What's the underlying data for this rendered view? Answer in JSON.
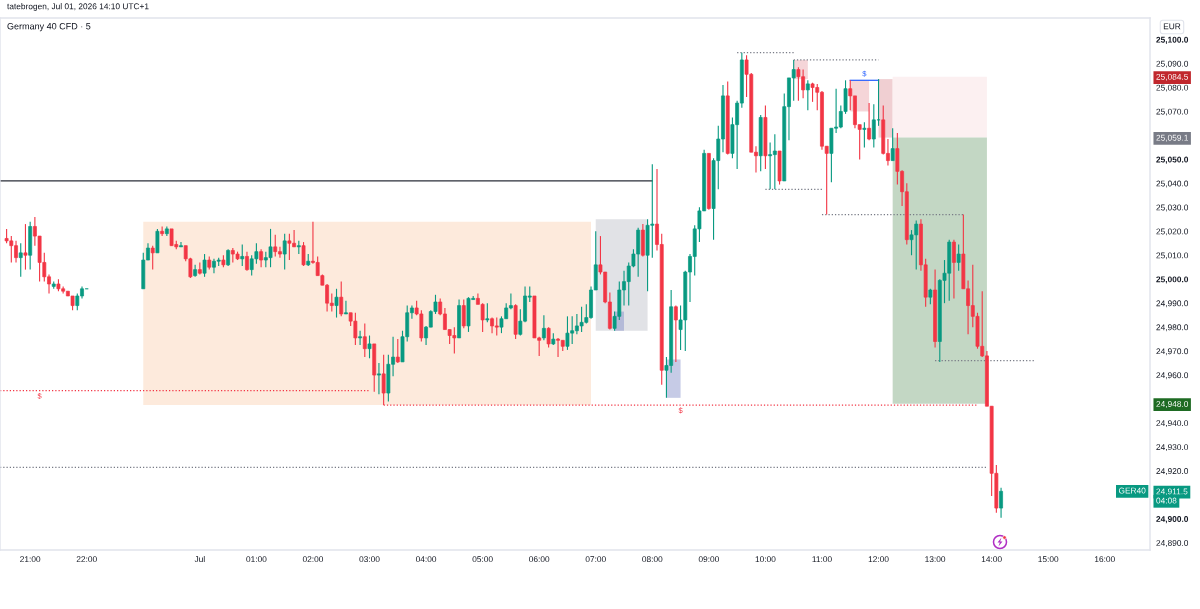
{
  "chart_data": {
    "type": "candlestick",
    "title": "Germany 40 CFD · 5",
    "ylabel": "EUR",
    "x": [
      "2026-06-30T20:35",
      "2026-06-30T20:40",
      "2026-06-30T20:45",
      "2026-06-30T20:50",
      "2026-06-30T20:55",
      "2026-06-30T21:00",
      "2026-06-30T21:05",
      "2026-06-30T21:10",
      "2026-06-30T21:15",
      "2026-06-30T21:20",
      "2026-06-30T21:25",
      "2026-06-30T21:30",
      "2026-06-30T21:35",
      "2026-06-30T21:40",
      "2026-06-30T21:45",
      "2026-06-30T21:50",
      "2026-06-30T21:55",
      "2026-06-30T22:00",
      "2026-06-30T23:00",
      "2026-06-30T23:05",
      "2026-06-30T23:10",
      "2026-06-30T23:15",
      "2026-06-30T23:20",
      "2026-06-30T23:25",
      "2026-06-30T23:30",
      "2026-06-30T23:35",
      "2026-06-30T23:40",
      "2026-06-30T23:45",
      "2026-06-30T23:50",
      "2026-06-30T23:55",
      "2026-07-01T00:00",
      "2026-07-01T00:05",
      "2026-07-01T00:10",
      "2026-07-01T00:15",
      "2026-07-01T00:20",
      "2026-07-01T00:25",
      "2026-07-01T00:30",
      "2026-07-01T00:35",
      "2026-07-01T00:40",
      "2026-07-01T00:45",
      "2026-07-01T00:50",
      "2026-07-01T00:55",
      "2026-07-01T01:00",
      "2026-07-01T01:05",
      "2026-07-01T01:10",
      "2026-07-01T01:15",
      "2026-07-01T01:20",
      "2026-07-01T01:25",
      "2026-07-01T01:30",
      "2026-07-01T01:35",
      "2026-07-01T01:40",
      "2026-07-01T01:45",
      "2026-07-01T01:50",
      "2026-07-01T01:55",
      "2026-07-01T02:00",
      "2026-07-01T02:05",
      "2026-07-01T02:10",
      "2026-07-01T02:15",
      "2026-07-01T02:20",
      "2026-07-01T02:25",
      "2026-07-01T02:30",
      "2026-07-01T02:35",
      "2026-07-01T02:40",
      "2026-07-01T02:45",
      "2026-07-01T02:50",
      "2026-07-01T02:55",
      "2026-07-01T03:00",
      "2026-07-01T03:05",
      "2026-07-01T03:10",
      "2026-07-01T03:15",
      "2026-07-01T03:20",
      "2026-07-01T03:25",
      "2026-07-01T03:30",
      "2026-07-01T03:35",
      "2026-07-01T03:40",
      "2026-07-01T03:45",
      "2026-07-01T03:50",
      "2026-07-01T03:55",
      "2026-07-01T04:00",
      "2026-07-01T04:05",
      "2026-07-01T04:10",
      "2026-07-01T04:15",
      "2026-07-01T04:20",
      "2026-07-01T04:25",
      "2026-07-01T04:30",
      "2026-07-01T04:35",
      "2026-07-01T04:40",
      "2026-07-01T04:45",
      "2026-07-01T04:50",
      "2026-07-01T04:55",
      "2026-07-01T05:00",
      "2026-07-01T05:05",
      "2026-07-01T05:10",
      "2026-07-01T05:15",
      "2026-07-01T05:20",
      "2026-07-01T05:25",
      "2026-07-01T05:30",
      "2026-07-01T05:35",
      "2026-07-01T05:40",
      "2026-07-01T05:45",
      "2026-07-01T05:50",
      "2026-07-01T05:55",
      "2026-07-01T06:00",
      "2026-07-01T06:05",
      "2026-07-01T06:10",
      "2026-07-01T06:15",
      "2026-07-01T06:20",
      "2026-07-01T06:25",
      "2026-07-01T06:30",
      "2026-07-01T06:35",
      "2026-07-01T06:40",
      "2026-07-01T06:45",
      "2026-07-01T06:50",
      "2026-07-01T06:55",
      "2026-07-01T07:00",
      "2026-07-01T07:05",
      "2026-07-01T07:10",
      "2026-07-01T07:15",
      "2026-07-01T07:20",
      "2026-07-01T07:25",
      "2026-07-01T07:30",
      "2026-07-01T07:35",
      "2026-07-01T07:40",
      "2026-07-01T07:45",
      "2026-07-01T07:50",
      "2026-07-01T07:55",
      "2026-07-01T08:00",
      "2026-07-01T08:05",
      "2026-07-01T08:10",
      "2026-07-01T08:15",
      "2026-07-01T08:20",
      "2026-07-01T08:25",
      "2026-07-01T08:30",
      "2026-07-01T08:35",
      "2026-07-01T08:40",
      "2026-07-01T08:45",
      "2026-07-01T08:50",
      "2026-07-01T08:55",
      "2026-07-01T09:00",
      "2026-07-01T09:05",
      "2026-07-01T09:10",
      "2026-07-01T09:15",
      "2026-07-01T09:20",
      "2026-07-01T09:25",
      "2026-07-01T09:30",
      "2026-07-01T09:35",
      "2026-07-01T09:40",
      "2026-07-01T09:45",
      "2026-07-01T09:50",
      "2026-07-01T09:55",
      "2026-07-01T10:00",
      "2026-07-01T10:05",
      "2026-07-01T10:10",
      "2026-07-01T10:15",
      "2026-07-01T10:20",
      "2026-07-01T10:25",
      "2026-07-01T10:30",
      "2026-07-01T10:35",
      "2026-07-01T10:40",
      "2026-07-01T10:45",
      "2026-07-01T10:50",
      "2026-07-01T10:55",
      "2026-07-01T11:00",
      "2026-07-01T11:05",
      "2026-07-01T11:10",
      "2026-07-01T11:15",
      "2026-07-01T11:20",
      "2026-07-01T11:25",
      "2026-07-01T11:30",
      "2026-07-01T11:35",
      "2026-07-01T11:40",
      "2026-07-01T11:45",
      "2026-07-01T11:50",
      "2026-07-01T11:55",
      "2026-07-01T12:00",
      "2026-07-01T12:05",
      "2026-07-01T12:10",
      "2026-07-01T12:15",
      "2026-07-01T12:20",
      "2026-07-01T12:25",
      "2026-07-01T12:30",
      "2026-07-01T12:35",
      "2026-07-01T12:40",
      "2026-07-01T12:45",
      "2026-07-01T12:50",
      "2026-07-01T12:55",
      "2026-07-01T13:00",
      "2026-07-01T13:05",
      "2026-07-01T13:10",
      "2026-07-01T13:15",
      "2026-07-01T13:20",
      "2026-07-01T13:25",
      "2026-07-01T13:30",
      "2026-07-01T13:35",
      "2026-07-01T13:40",
      "2026-07-01T13:45",
      "2026-07-01T13:50",
      "2026-07-01T13:55",
      "2026-07-01T14:00",
      "2026-07-01T14:05",
      "2026-07-01T14:10"
    ],
    "ohlc": [
      [
        25017,
        25021,
        25015,
        25016
      ],
      [
        25016,
        25018,
        25007,
        25014
      ],
      [
        25014,
        25016,
        25007,
        25009
      ],
      [
        25009,
        25015,
        25001,
        25011
      ],
      [
        25011,
        25023,
        25004,
        25010
      ],
      [
        25010,
        25024,
        25004,
        25022
      ],
      [
        25022,
        25026,
        25014,
        25018
      ],
      [
        25018,
        25018,
        24999,
        25007
      ],
      [
        25007,
        25011,
        24999,
        25001
      ],
      [
        25001,
        25002,
        24994,
        24998
      ],
      [
        24997,
        24999,
        24996,
        24998
      ],
      [
        24998,
        25000,
        24995,
        24996
      ],
      [
        24996,
        24997,
        24994,
        24995
      ],
      [
        24995,
        24995,
        24993,
        24993
      ],
      [
        24993,
        24993,
        24987,
        24989
      ],
      [
        24989,
        24994,
        24987,
        24993
      ],
      [
        24993,
        24997,
        24992,
        24996
      ],
      [
        24996,
        24996,
        24996,
        24996
      ],
      [
        24996,
        25011,
        24996,
        25008
      ],
      [
        25008,
        25015,
        25008,
        25013
      ],
      [
        25013,
        25014,
        25004,
        25011
      ],
      [
        25011,
        25021,
        25011,
        25020
      ],
      [
        25020,
        25022,
        25018,
        25019
      ],
      [
        25019,
        25022,
        25018,
        25021
      ],
      [
        25021,
        25021,
        25014,
        25014
      ],
      [
        25014.5,
        25016,
        25012.5,
        25013.5
      ],
      [
        25013.5,
        25015.5,
        25013.5,
        25014
      ],
      [
        25014,
        25014,
        25007.5,
        25008.5
      ],
      [
        25008.5,
        25009,
        25000.5,
        25001
      ],
      [
        25001.5,
        25006,
        25001,
        25004
      ],
      [
        25004,
        25007,
        25002,
        25002.5
      ],
      [
        25002.5,
        25010.5,
        25001,
        25008
      ],
      [
        25008,
        25009.5,
        25004,
        25005
      ],
      [
        25005,
        25008.5,
        25002.5,
        25007.5
      ],
      [
        25007.5,
        25009,
        25005.5,
        25008
      ],
      [
        25008,
        25010,
        25005,
        25006
      ],
      [
        25006,
        25012.5,
        25005.5,
        25012
      ],
      [
        25012,
        25013,
        25007,
        25010.5
      ],
      [
        25010.5,
        25011.5,
        25008,
        25008.5
      ],
      [
        25008.5,
        25014.5,
        25005.5,
        25009.5
      ],
      [
        25009.5,
        25011.5,
        25003.5,
        25004
      ],
      [
        25004,
        25010,
        25001.5,
        25008.5
      ],
      [
        25008.5,
        25015,
        25006.5,
        25011.5
      ],
      [
        25011.5,
        25012.5,
        25005,
        25008
      ],
      [
        25008,
        25011.5,
        25005,
        25009
      ],
      [
        25009,
        25021,
        25005,
        25013.5
      ],
      [
        25013.5,
        25018.5,
        25009.5,
        25011.5
      ],
      [
        25011.5,
        25013.5,
        25009,
        25010.5
      ],
      [
        25010.5,
        25019,
        25004,
        25016
      ],
      [
        25016,
        25019,
        25008,
        25015
      ],
      [
        25015,
        25020.5,
        25013.5,
        25013.5
      ],
      [
        25013.5,
        25016,
        25010.5,
        25014
      ],
      [
        25014,
        25015.5,
        25005.5,
        25006
      ],
      [
        25006,
        25010.5,
        25005.5,
        25007.5
      ],
      [
        25007.5,
        25024,
        25006.5,
        25007
      ],
      [
        25007,
        25009.5,
        25001.5,
        25001.5
      ],
      [
        25001.5,
        25002,
        24997.5,
        24997.5
      ],
      [
        24997.5,
        24998,
        24986.5,
        24990
      ],
      [
        24990,
        24994,
        24986.5,
        24989
      ],
      [
        24989,
        24996,
        24984,
        24992.5
      ],
      [
        24992.5,
        24999,
        24984.5,
        24985.5
      ],
      [
        24985.5,
        24991,
        24985.5,
        24986
      ],
      [
        24986,
        24986,
        24980.5,
        24982.5
      ],
      [
        24982.5,
        24986,
        24972.5,
        24975.5
      ],
      [
        24975.5,
        24978.5,
        24972.5,
        24976
      ],
      [
        24976,
        24981.5,
        24967.5,
        24971
      ],
      [
        24971,
        24976.5,
        24967,
        24973
      ],
      [
        24973,
        24973,
        24953,
        24960
      ],
      [
        24960,
        24965,
        24952,
        24960.5
      ],
      [
        24960.5,
        24968.5,
        24947.5,
        24952.5
      ],
      [
        24952.5,
        24968.5,
        24949,
        24964.5
      ],
      [
        24964.5,
        24976,
        24959.5,
        24967.5
      ],
      [
        24967.5,
        24975,
        24965,
        24965.5
      ],
      [
        24965.5,
        24978.5,
        24965.5,
        24976
      ],
      [
        24976,
        24989,
        24974,
        24986
      ],
      [
        24986,
        24989,
        24983.5,
        24988
      ],
      [
        24988,
        24991,
        24985,
        24985.5
      ],
      [
        24985.5,
        24987,
        24974,
        24975.5
      ],
      [
        24975.5,
        24980.5,
        24972.5,
        24980
      ],
      [
        24980,
        24987,
        24980,
        24986.5
      ],
      [
        24986.5,
        24993.5,
        24985.5,
        24990.5
      ],
      [
        24990.5,
        24992,
        24985,
        24985.5
      ],
      [
        24985.5,
        24988,
        24979,
        24979
      ],
      [
        24979,
        24979,
        24973,
        24976.5
      ],
      [
        24976.5,
        24980,
        24969,
        24975.5
      ],
      [
        24975.5,
        24991.5,
        24975.5,
        24989
      ],
      [
        24989,
        24991.5,
        24979.5,
        24980.5
      ],
      [
        24980.5,
        24992.5,
        24978,
        24992
      ],
      [
        24991.5,
        24993,
        24991.5,
        24992
      ],
      [
        24992,
        24994,
        24989.5,
        24989.5
      ],
      [
        24989.5,
        24990,
        24978,
        24983
      ],
      [
        24983,
        24990,
        24982,
        24983.5
      ],
      [
        24983.5,
        24984,
        24977.5,
        24980.5
      ],
      [
        24980.5,
        24984,
        24976.5,
        24980
      ],
      [
        24980,
        24984.5,
        24977.5,
        24983.5
      ],
      [
        24983.5,
        24990,
        24983.5,
        24988
      ],
      [
        24988,
        24994,
        24987.5,
        24989
      ],
      [
        24989,
        24989.5,
        24975,
        24977
      ],
      [
        24977,
        24987.5,
        24976.5,
        24982.5
      ],
      [
        24982.5,
        24997,
        24982,
        24993
      ],
      [
        24992.5,
        24997,
        24990.5,
        24993
      ],
      [
        24993,
        24993,
        24975.5,
        24975.5
      ],
      [
        24975.5,
        24976,
        24968,
        24974.5
      ],
      [
        24975.5,
        24985,
        24974.5,
        24979.5
      ],
      [
        24979.5,
        24980,
        24971.5,
        24973
      ],
      [
        24973,
        24977.5,
        24972.5,
        24975
      ],
      [
        24975,
        24975.5,
        24967.5,
        24974.5
      ],
      [
        24974.5,
        24974.5,
        24970,
        24972
      ],
      [
        24972,
        24984.5,
        24970.5,
        24977.5
      ],
      [
        24977.5,
        24984.5,
        24973,
        24978.5
      ],
      [
        24978.5,
        24985.5,
        24977,
        24980.5
      ],
      [
        24980.5,
        24988.5,
        24978,
        24982
      ],
      [
        24982,
        24989.5,
        24981.5,
        24984
      ],
      [
        24984,
        24997,
        24983.5,
        24995.5
      ],
      [
        24995.5,
        25020,
        24995.5,
        25006
      ],
      [
        25006,
        25018,
        25002,
        25003
      ],
      [
        25003,
        25003,
        24990,
        24990.5
      ],
      [
        24990.5,
        24994.5,
        24979,
        24979.5
      ],
      [
        24979.5,
        24986.5,
        24978.5,
        24984.5
      ],
      [
        24984.5,
        24999,
        24983,
        24995.5
      ],
      [
        24995.5,
        25003.5,
        24989,
        24999
      ],
      [
        24999,
        25007,
        24989,
        25005.5
      ],
      [
        25005.5,
        25012.5,
        25005,
        25010.5
      ],
      [
        25010.5,
        25021.5,
        25001,
        25020.5
      ],
      [
        25020.5,
        25023,
        25009.5,
        25010
      ],
      [
        25010,
        25025,
        24995,
        25022.5
      ],
      [
        25022.5,
        25048,
        25009,
        25023
      ],
      [
        25023,
        25046,
        25012,
        25014.5
      ],
      [
        25014.5,
        25019,
        24956,
        24962
      ],
      [
        24962,
        24967.5,
        24950.5,
        24964
      ],
      [
        24964,
        24995.5,
        24961,
        24988.5
      ],
      [
        24988.5,
        24989,
        24965.5,
        24983
      ],
      [
        24979,
        24989,
        24970.5,
        24983
      ],
      [
        24983,
        25003.5,
        24970,
        25003
      ],
      [
        25003,
        25010.5,
        24990.5,
        25009.5
      ],
      [
        25009.5,
        25022.5,
        25001.5,
        25021
      ],
      [
        25021,
        25030,
        25015.5,
        25028.5
      ],
      [
        25028.5,
        25054,
        25028.5,
        25052.5
      ],
      [
        25052.5,
        25052.5,
        25029,
        25029.5
      ],
      [
        25029.5,
        25050.5,
        25016.5,
        25049.5
      ],
      [
        25049.5,
        25064,
        25037.5,
        25058.5
      ],
      [
        25058.5,
        25081,
        25053,
        25076.5
      ],
      [
        25076.5,
        25082.5,
        25052,
        25052.5
      ],
      [
        25052.5,
        25067.5,
        25050.5,
        25064.5
      ],
      [
        25064.5,
        25074.5,
        25046,
        25073.5
      ],
      [
        25073.5,
        25094.5,
        25071.5,
        25091.5
      ],
      [
        25091.5,
        25093.5,
        25076,
        25085.5
      ],
      [
        25085.5,
        25086,
        25053,
        25053
      ],
      [
        25053,
        25055.5,
        25044.5,
        25051.5
      ],
      [
        25051.5,
        25068.5,
        25045,
        25067.5
      ],
      [
        25067.5,
        25072.5,
        25046,
        25051.5
      ],
      [
        25051.5,
        25057,
        25037.5,
        25052
      ],
      [
        25052,
        25060.5,
        25037.5,
        25053.5
      ],
      [
        25053.5,
        25053.5,
        25039.5,
        25041
      ],
      [
        25041,
        25077.5,
        25041,
        25072
      ],
      [
        25072,
        25084,
        25058,
        25084
      ],
      [
        25084,
        25091.5,
        25074.5,
        25087.5
      ],
      [
        25087.5,
        25088.5,
        25074.5,
        25084.5
      ],
      [
        25084.5,
        25087.5,
        25075.5,
        25079
      ],
      [
        25079,
        25083,
        25070.5,
        25081.5
      ],
      [
        25081.5,
        25082,
        25074,
        25080
      ],
      [
        25080,
        25081.5,
        25070.5,
        25078
      ],
      [
        25078,
        25078.5,
        25054,
        25055.5
      ],
      [
        25055.5,
        25055.5,
        25027,
        25052.5
      ],
      [
        25052.5,
        25063,
        25040.5,
        25063
      ],
      [
        25063,
        25079.5,
        25061,
        25063.5
      ],
      [
        25063.5,
        25072.5,
        25063,
        25070
      ],
      [
        25070,
        25083,
        25069,
        25079.5
      ],
      [
        25079.5,
        25083,
        25070.5,
        25076.5
      ],
      [
        25076.5,
        25076.5,
        25063,
        25064.5
      ],
      [
        25064.5,
        25064.5,
        25050,
        25062.5
      ],
      [
        25062.5,
        25065.5,
        25055,
        25063
      ],
      [
        25063,
        25073.5,
        25058,
        25058.5
      ],
      [
        25058.5,
        25073,
        25055,
        25066.5
      ],
      [
        25066.5,
        25083.5,
        25064,
        25066.5
      ],
      [
        25066.5,
        25072.5,
        25052,
        25052.5
      ],
      [
        25052.5,
        25058.5,
        25047.5,
        25049.5
      ],
      [
        25049.5,
        25063,
        25049.5,
        25054.5
      ],
      [
        25054.5,
        25061,
        25039.5,
        25045
      ],
      [
        25045,
        25045.5,
        25030.5,
        25036.5
      ],
      [
        25036.5,
        25040,
        25014.5,
        25016.5
      ],
      [
        25016.5,
        25020.5,
        25010,
        25018.5
      ],
      [
        25018.5,
        25024.5,
        25004,
        25023
      ],
      [
        25023,
        25025,
        25003.5,
        25006
      ],
      [
        25006,
        25008.5,
        24988.5,
        24992.5
      ],
      [
        24992.5,
        24996,
        24989.5,
        24995.5
      ],
      [
        24995.5,
        25004,
        24971.5,
        24974
      ],
      [
        24974,
        25000,
        24965.5,
        24999.5
      ],
      [
        24999.5,
        25008,
        24990,
        25002.5
      ],
      [
        25002.5,
        25016.5,
        24991,
        25015.5
      ],
      [
        25015.5,
        25016.5,
        24992,
        25007
      ],
      [
        25007,
        25014.5,
        25003.5,
        25010.5
      ],
      [
        25010.5,
        25027,
        24996,
        24996
      ],
      [
        24996,
        24999.5,
        24977,
        24989
      ],
      [
        24989,
        25006,
        24980,
        24984.5
      ],
      [
        24984.5,
        24986,
        24971,
        24972
      ],
      [
        24972,
        24995,
        24967.5,
        24968
      ],
      [
        24968,
        24970,
        24947,
        24947
      ],
      [
        24947,
        24947,
        24909.5,
        24919
      ],
      [
        24919,
        24922.5,
        24902.5,
        24904.5
      ],
      [
        24904.5,
        24913,
        24900.5,
        24911.5
      ]
    ],
    "colors": [
      "#f23645",
      "#f23645",
      "#f23645",
      "#089981",
      "#f23645",
      "#089981",
      "#f23645",
      "#f23645",
      "#f23645",
      "#f23645",
      "#089981",
      "#f23645",
      "#f23645",
      "#f23645",
      "#f23645",
      "#089981",
      "#089981",
      "#089981",
      "#089981",
      "#089981",
      "#f23645",
      "#089981",
      "#f23645",
      "#089981",
      "#f23645",
      "#f23645",
      "#089981",
      "#f23645",
      "#f23645",
      "#089981",
      "#f23645",
      "#089981",
      "#f23645",
      "#089981",
      "#089981",
      "#f23645",
      "#089981",
      "#f23645",
      "#f23645",
      "#089981",
      "#f23645",
      "#089981",
      "#089981",
      "#f23645",
      "#089981",
      "#089981",
      "#f23645",
      "#f23645",
      "#089981",
      "#f23645",
      "#f23645",
      "#089981",
      "#f23645",
      "#089981",
      "#f23645",
      "#f23645",
      "#f23645",
      "#f23645",
      "#f23645",
      "#089981",
      "#f23645",
      "#089981",
      "#f23645",
      "#f23645",
      "#089981",
      "#f23645",
      "#089981",
      "#f23645",
      "#089981",
      "#f23645",
      "#089981",
      "#089981",
      "#f23645",
      "#089981",
      "#089981",
      "#089981",
      "#f23645",
      "#f23645",
      "#089981",
      "#089981",
      "#089981",
      "#f23645",
      "#f23645",
      "#f23645",
      "#f23645",
      "#089981",
      "#f23645",
      "#089981",
      "#089981",
      "#f23645",
      "#f23645",
      "#089981",
      "#f23645",
      "#f23645",
      "#089981",
      "#089981",
      "#089981",
      "#f23645",
      "#089981",
      "#089981",
      "#089981",
      "#f23645",
      "#f23645",
      "#089981",
      "#f23645",
      "#089981",
      "#f23645",
      "#f23645",
      "#089981",
      "#089981",
      "#089981",
      "#089981",
      "#089981",
      "#089981",
      "#089981",
      "#f23645",
      "#f23645",
      "#f23645",
      "#089981",
      "#089981",
      "#089981",
      "#089981",
      "#089981",
      "#089981",
      "#f23645",
      "#089981",
      "#089981",
      "#f23645",
      "#f23645",
      "#089981",
      "#089981",
      "#f23645",
      "#089981",
      "#089981",
      "#089981",
      "#089981",
      "#089981",
      "#089981",
      "#f23645",
      "#089981",
      "#089981",
      "#089981",
      "#f23645",
      "#089981",
      "#089981",
      "#089981",
      "#f23645",
      "#f23645",
      "#f23645",
      "#089981",
      "#f23645",
      "#089981",
      "#089981",
      "#f23645",
      "#089981",
      "#089981",
      "#089981",
      "#f23645",
      "#f23645",
      "#089981",
      "#f23645",
      "#f23645",
      "#f23645",
      "#f23645",
      "#089981",
      "#089981",
      "#089981",
      "#089981",
      "#f23645",
      "#f23645",
      "#f23645",
      "#089981",
      "#f23645",
      "#089981",
      "#089981",
      "#f23645",
      "#f23645",
      "#089981",
      "#f23645",
      "#f23645",
      "#f23645",
      "#089981",
      "#089981",
      "#f23645",
      "#f23645",
      "#089981",
      "#f23645",
      "#089981",
      "#089981",
      "#089981",
      "#f23645",
      "#089981",
      "#f23645",
      "#f23645",
      "#f23645",
      "#f23645",
      "#f23645",
      "#f23645",
      "#f23645",
      "#f23645",
      "#089981"
    ],
    "series": [
      {
        "type": "line",
        "x": [
          "2026-06-30T23:00",
          "2026-07-01T06:55"
        ],
        "values": [
          null,
          null
        ],
        "lower": [
          24947.5,
          24947.5
        ],
        "upper": [
          25024,
          25024
        ],
        "color": "#fdeadc"
      },
      {
        "type": "line",
        "x": [
          "2026-07-01T07:00",
          "2026-07-01T07:55"
        ],
        "values": [
          null,
          null
        ],
        "lower": [
          24978.5,
          24978.5
        ],
        "upper": [
          25025,
          25025
        ],
        "color": "#e1e2e6"
      },
      {
        "type": "line",
        "x": [
          "2026-07-01T07:20",
          "2026-07-01T07:30"
        ],
        "values": [
          null,
          null
        ],
        "lower": [
          24978.5,
          24978.5
        ],
        "upper": [
          24986.5,
          24986.5
        ],
        "color": "#b4bad8"
      },
      {
        "type": "line",
        "x": [
          "2026-07-01T08:15",
          "2026-07-01T08:30"
        ],
        "values": [
          null,
          null
        ],
        "lower": [
          24950.5,
          24950.5
        ],
        "upper": [
          24966.5,
          24966.5
        ],
        "color": "#c6cbe6"
      },
      {
        "type": "line",
        "x": [
          "2026-07-01T10:30",
          "2026-07-01T10:45"
        ],
        "values": [
          null,
          null
        ],
        "lower": [
          25083.5,
          25083.5
        ],
        "upper": [
          25091.5,
          25091.5
        ],
        "color": "#f5d5d8"
      },
      {
        "type": "line",
        "x": [
          "2026-07-01T11:30",
          "2026-07-01T11:50"
        ],
        "values": [
          null,
          null
        ],
        "lower": [
          25070,
          25070
        ],
        "upper": [
          25083,
          25083
        ],
        "color": "#f5d5d8"
      },
      {
        "type": "line",
        "x": [
          "2026-07-01T12:00",
          "2026-07-01T12:15"
        ],
        "values": [
          null,
          null
        ],
        "lower": [
          25059.1,
          25059.1
        ],
        "upper": [
          25083.5,
          25083.5
        ],
        "color": "#f0cfd2"
      },
      {
        "type": "line",
        "x": [
          "2026-07-01T12:15",
          "2026-07-01T13:55"
        ],
        "values": [
          null,
          null
        ],
        "lower": [
          25059.1,
          25059.1
        ],
        "upper": [
          25084.5,
          25084.5
        ],
        "color": "#fcf0f1"
      },
      {
        "type": "line",
        "x": [
          "2026-07-01T12:15",
          "2026-07-01T13:55"
        ],
        "values": [
          null,
          null
        ],
        "lower": [
          24948,
          24948
        ],
        "upper": [
          25059.1,
          25059.1
        ],
        "color": "#c3d7c4"
      },
      {
        "type": "line",
        "x": [
          "2026-06-30T20:28",
          "2026-07-01T08:00"
        ],
        "values": [
          25041,
          25041
        ],
        "color": "#2a2e39",
        "line_style": "solid"
      },
      {
        "type": "line",
        "x": [
          "2026-06-30T20:28",
          "2026-07-01T03:00"
        ],
        "values": [
          24953.5,
          24953.5
        ],
        "color": "#f23645",
        "line_style": "dotted"
      },
      {
        "type": "line",
        "x": [
          "2026-07-01T03:15",
          "2026-07-01T13:45"
        ],
        "values": [
          24947.5,
          24947.5
        ],
        "color": "#f23645",
        "line_style": "dotted"
      },
      {
        "type": "line",
        "x": [
          "2026-06-30T20:28",
          "2026-07-01T13:55"
        ],
        "values": [
          24921.5,
          24921.5
        ],
        "color": "#787b86",
        "line_style": "dotted"
      },
      {
        "type": "line",
        "x": [
          "2026-07-01T09:30",
          "2026-07-01T10:30"
        ],
        "values": [
          25094.5,
          25094.5
        ],
        "color": "#787b86",
        "line_style": "dotted"
      },
      {
        "type": "line",
        "x": [
          "2026-07-01T10:30",
          "2026-07-01T12:00"
        ],
        "values": [
          25091.5,
          25091.5
        ],
        "color": "#787b86",
        "line_style": "dotted"
      },
      {
        "type": "line",
        "x": [
          "2026-07-01T10:00",
          "2026-07-01T11:00"
        ],
        "values": [
          25037.5,
          25037.5
        ],
        "color": "#787b86",
        "line_style": "dotted"
      },
      {
        "type": "line",
        "x": [
          "2026-07-01T11:00",
          "2026-07-01T13:30"
        ],
        "values": [
          25027,
          25027
        ],
        "color": "#787b86",
        "line_style": "dotted"
      },
      {
        "type": "line",
        "x": [
          "2026-07-01T13:00",
          "2026-07-01T14:45"
        ],
        "values": [
          24966,
          24966
        ],
        "color": "#787b86",
        "line_style": "dotted"
      },
      {
        "type": "line",
        "x": [
          "2026-07-01T11:30",
          "2026-07-01T12:00"
        ],
        "values": [
          25083,
          25083
        ],
        "color": "#2962ff",
        "line_style": "solid"
      }
    ],
    "xlim": [
      "2026-06-30T20:28",
      "2026-07-01T16:48"
    ],
    "xticks": [
      {
        "value": "2026-06-30T21:00",
        "label": "21:00"
      },
      {
        "value": "2026-06-30T22:00",
        "label": "22:00"
      },
      {
        "value": "2026-07-01T00:00",
        "label": "Jul"
      },
      {
        "value": "2026-07-01T01:00",
        "label": "01:00"
      },
      {
        "value": "2026-07-01T02:00",
        "label": "02:00"
      },
      {
        "value": "2026-07-01T03:00",
        "label": "03:00"
      },
      {
        "value": "2026-07-01T04:00",
        "label": "04:00"
      },
      {
        "value": "2026-07-01T05:00",
        "label": "05:00"
      },
      {
        "value": "2026-07-01T06:00",
        "label": "06:00"
      },
      {
        "value": "2026-07-01T07:00",
        "label": "07:00"
      },
      {
        "value": "2026-07-01T08:00",
        "label": "08:00"
      },
      {
        "value": "2026-07-01T09:00",
        "label": "09:00"
      },
      {
        "value": "2026-07-01T10:00",
        "label": "10:00"
      },
      {
        "value": "2026-07-01T11:00",
        "label": "11:00"
      },
      {
        "value": "2026-07-01T12:00",
        "label": "12:00"
      },
      {
        "value": "2026-07-01T13:00",
        "label": "13:00"
      },
      {
        "value": "2026-07-01T14:00",
        "label": "14:00"
      },
      {
        "value": "2026-07-01T15:00",
        "label": "15:00"
      },
      {
        "value": "2026-07-01T16:00",
        "label": "16:00"
      }
    ],
    "ylim": [
      24887,
      25109
    ],
    "yticks": [
      {
        "value": 24890,
        "label": "24,890.0"
      },
      {
        "value": 24900,
        "label": "24,900.0"
      },
      {
        "value": 24920,
        "label": "24,920.0"
      },
      {
        "value": 24930,
        "label": "24,930.0"
      },
      {
        "value": 24940,
        "label": "24,940.0"
      },
      {
        "value": 24960,
        "label": "24,960.0"
      },
      {
        "value": 24970,
        "label": "24,970.0"
      },
      {
        "value": 24980,
        "label": "24,980.0"
      },
      {
        "value": 24990,
        "label": "24,990.0"
      },
      {
        "value": 25000,
        "label": "25,000.0"
      },
      {
        "value": 25010,
        "label": "25,010.0"
      },
      {
        "value": 25020,
        "label": "25,020.0"
      },
      {
        "value": 25030,
        "label": "25,030.0"
      },
      {
        "value": 25040,
        "label": "25,040.0"
      },
      {
        "value": 25050,
        "label": "25,050.0"
      },
      {
        "value": 25070,
        "label": "25,070.0"
      },
      {
        "value": 25080,
        "label": "25,080.0"
      },
      {
        "value": 25090,
        "label": "25,090.0"
      },
      {
        "value": 25100,
        "label": "25,100.0"
      }
    ],
    "y2lim": [
      24887,
      25109
    ],
    "y2ticks": [
      {
        "value": 25084.5,
        "label": "25,084.5"
      },
      {
        "value": 25059.1,
        "label": "25,059.1"
      },
      {
        "value": 24948,
        "label": "24,948.0"
      },
      {
        "value": 24911.5,
        "label": "24,911.5"
      }
    ],
    "annotations": [
      "tatebrogen, Jul 01, 2026 14:10 UTC+1",
      "04:08",
      "GER40",
      {
        "text": "$",
        "x": "2026-06-30T21:10",
        "y": 24953.5
      },
      {
        "text": "$",
        "x": "2026-07-01T08:30",
        "y": 24947.5
      },
      {
        "text": "$",
        "x": "2026-07-01T11:45",
        "y": 25083
      }
    ]
  }
}
